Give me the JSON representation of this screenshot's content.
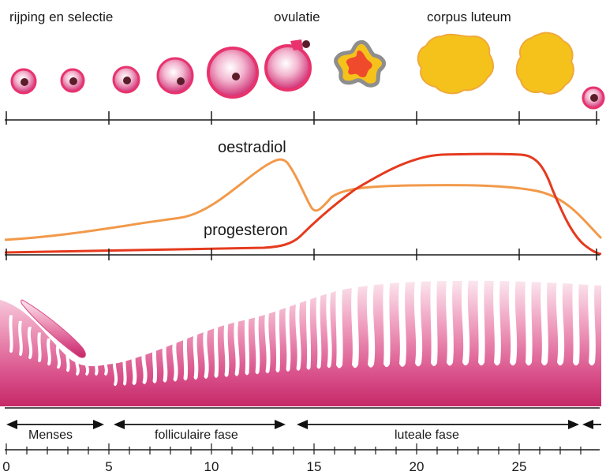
{
  "stages": {
    "ripening": "rijping en selectie",
    "ovulation": "ovulatie",
    "corpus_luteum": "corpus luteum"
  },
  "hormones": {
    "estradiol": "oestradiol",
    "progesterone": "progesteron"
  },
  "phases": {
    "menses": "Menses",
    "follicular": "folliculaire fase",
    "luteal": "luteale fase"
  },
  "axis": {
    "ticks": [
      {
        "day": 0,
        "label": "0"
      },
      {
        "day": 5,
        "label": "5"
      },
      {
        "day": 10,
        "label": "10"
      },
      {
        "day": 15,
        "label": "15"
      },
      {
        "day": 20,
        "label": "20"
      },
      {
        "day": 25,
        "label": "25"
      }
    ]
  },
  "colors": {
    "estradiol": "#f2994a",
    "progesterone": "#e53a1e",
    "follicle": "#d8307a",
    "corpus": "#f5c21b",
    "endometrium": "#c8306e"
  }
}
